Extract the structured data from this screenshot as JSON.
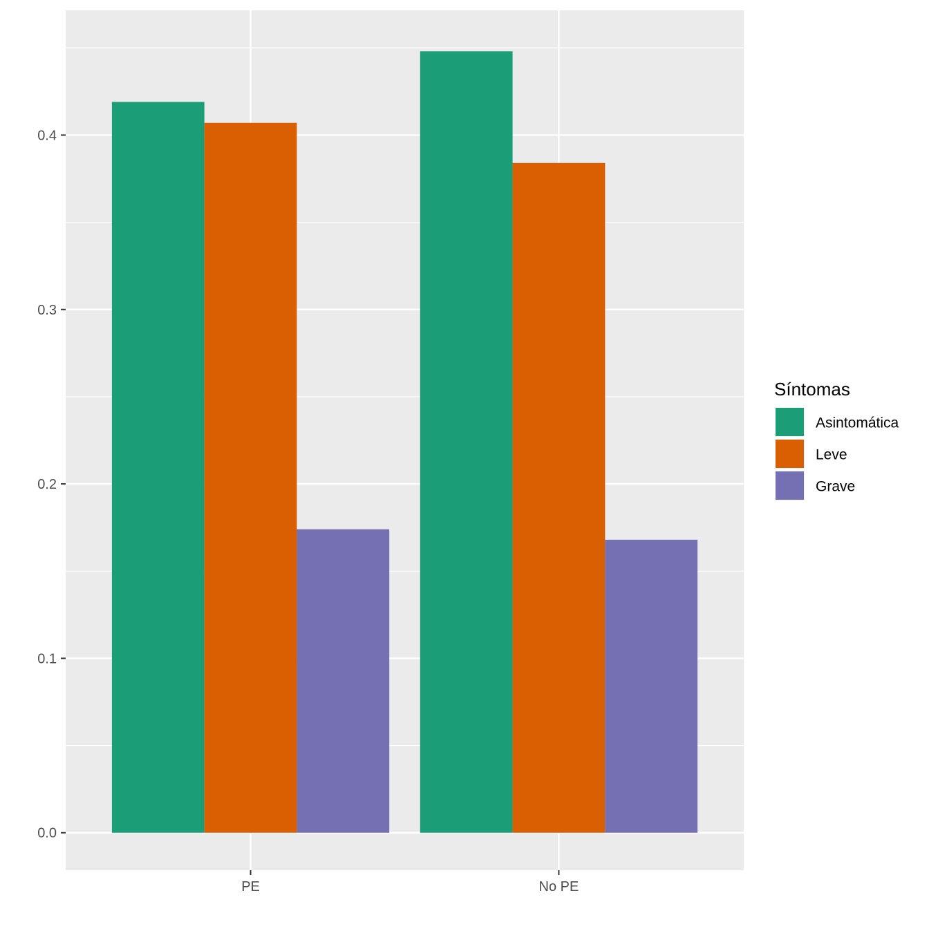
{
  "chart_data": {
    "type": "bar",
    "categories": [
      "PE",
      "No PE"
    ],
    "series": [
      {
        "name": "Asintomática",
        "values": [
          0.419,
          0.448
        ],
        "color": "#1B9E77"
      },
      {
        "name": "Leve",
        "values": [
          0.407,
          0.384
        ],
        "color": "#D95F02"
      },
      {
        "name": "Grave",
        "values": [
          0.174,
          0.168
        ],
        "color": "#7570B3"
      }
    ],
    "ylim": [
      -0.0215,
      0.4715
    ],
    "yticks": [
      0.0,
      0.1,
      0.2,
      0.3,
      0.4
    ],
    "ytick_labels": [
      "0.0",
      "0.1",
      "0.2",
      "0.3",
      "0.4"
    ],
    "xlabel": "",
    "ylabel": "",
    "title": "",
    "grid": true,
    "panel_background": "#EBEBEB",
    "legend": {
      "title": "Síntomas",
      "placement": "right"
    }
  }
}
